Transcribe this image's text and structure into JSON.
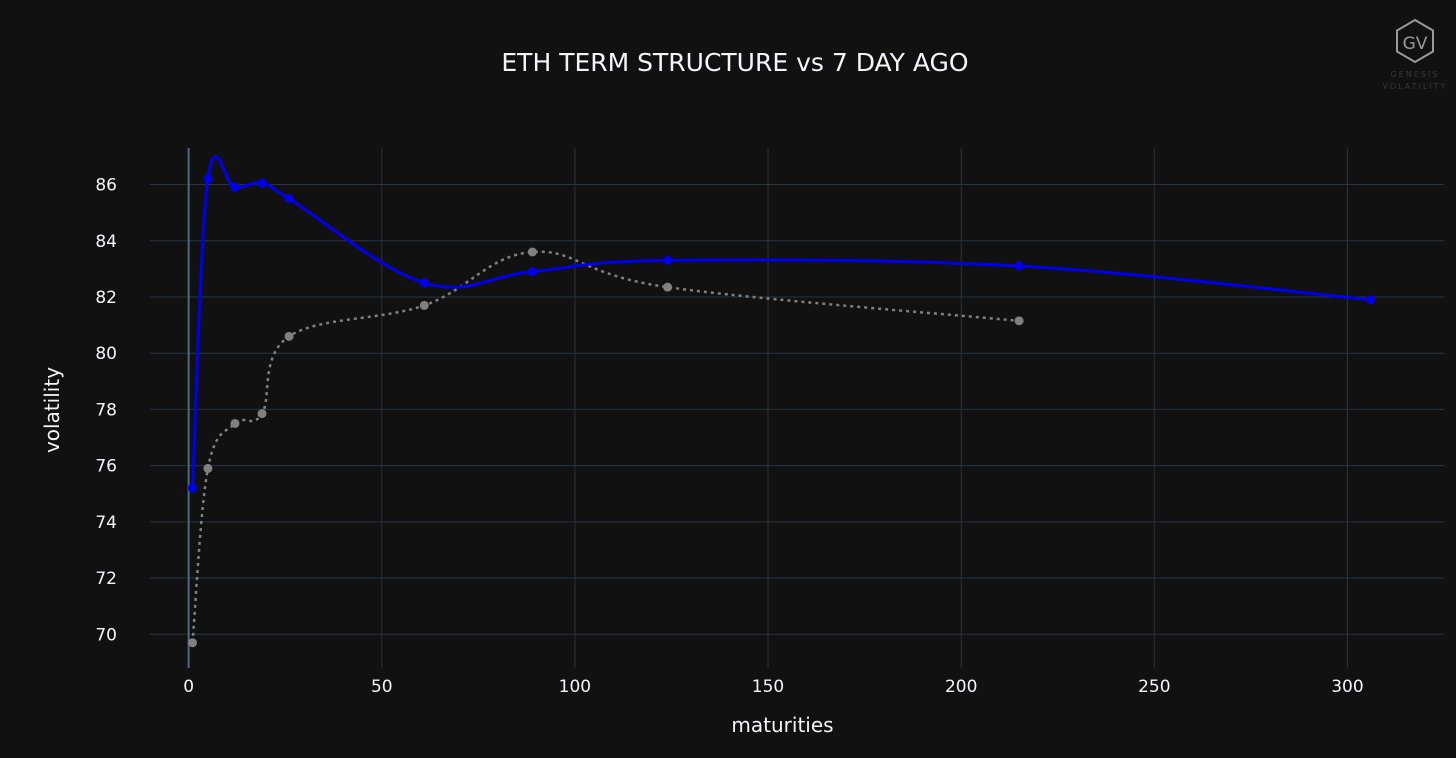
{
  "chart_data": {
    "type": "line",
    "title": "ETH TERM STRUCTURE vs 7 DAY AGO",
    "xlabel": "maturities",
    "ylabel": "volatility",
    "xlim": [
      -10,
      325
    ],
    "ylim": [
      68.8,
      87.3
    ],
    "xticks": [
      0,
      50,
      100,
      150,
      200,
      250,
      300
    ],
    "yticks": [
      70,
      72,
      74,
      76,
      78,
      80,
      82,
      84,
      86
    ],
    "grid": true,
    "series": [
      {
        "color": "#0000ee",
        "style": "solid",
        "x": [
          1,
          5,
          12,
          19,
          26,
          61,
          89,
          124,
          215,
          306
        ],
        "y": [
          75.2,
          86.2,
          85.9,
          86.05,
          85.5,
          82.5,
          82.9,
          83.3,
          83.1,
          81.9
        ]
      },
      {
        "color": "#808080",
        "style": "dotted",
        "x": [
          1,
          5,
          12,
          19,
          26,
          61,
          89,
          124,
          215
        ],
        "y": [
          69.7,
          75.9,
          77.5,
          77.85,
          80.6,
          81.7,
          83.6,
          82.35,
          81.15
        ]
      }
    ]
  },
  "colors": {
    "background": "#111111",
    "grid": "#283442",
    "text": "#f2f5fa"
  },
  "logo": {
    "monogram": "GV",
    "line1": "GENESIS",
    "line2": "VOLATILITY"
  }
}
